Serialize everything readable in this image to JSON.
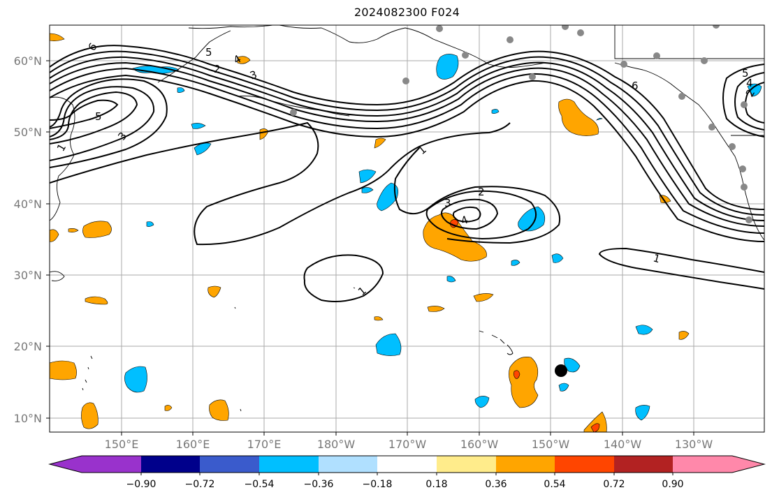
{
  "title": "2024082300 F024",
  "map": {
    "lat_labels": [
      "60°N",
      "50°N",
      "40°N",
      "30°N",
      "20°N",
      "10°N"
    ],
    "lon_labels": [
      "150°E",
      "160°E",
      "170°E",
      "180°W",
      "170°W",
      "160°W",
      "150°W",
      "140°W",
      "130°W"
    ],
    "contour_labels": [
      "6",
      "5",
      "4",
      "3",
      "2",
      "1",
      "5",
      "3",
      "1",
      "2",
      "3",
      "4",
      "1",
      "1",
      "6",
      "5",
      "4",
      "2"
    ],
    "gridlines": true,
    "storm_marker": "black-dot"
  },
  "colorbar": {
    "ticks": [
      "−0.90",
      "−0.72",
      "−0.54",
      "−0.36",
      "−0.18",
      "0.18",
      "0.36",
      "0.54",
      "0.72",
      "0.90"
    ],
    "colors": [
      "#9932cc",
      "#00008b",
      "#3a5bcc",
      "#00bfff",
      "#b0e0ff",
      "#ffffff",
      "#ffec8b",
      "#ffa500",
      "#ff4500",
      "#b22222",
      "#ff88aa"
    ]
  }
}
